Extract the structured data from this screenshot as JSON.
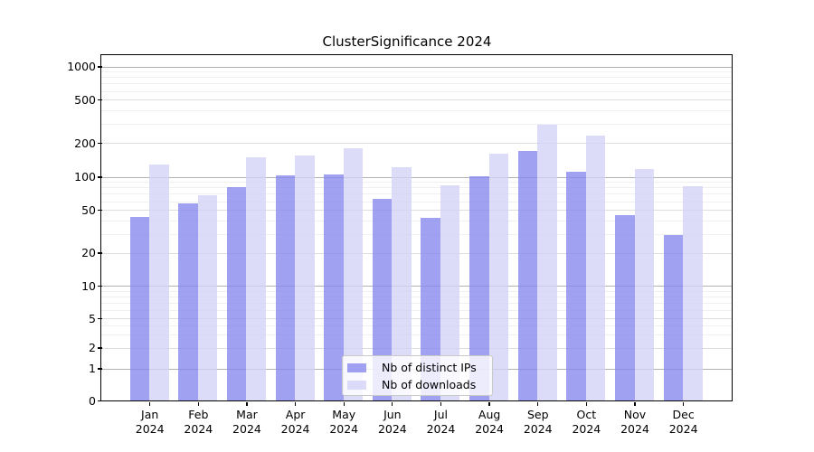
{
  "title": "ClusterSignificance 2024",
  "chart_data": {
    "type": "bar",
    "title": "ClusterSignificance 2024",
    "categories": [
      "Jan 2024",
      "Feb 2024",
      "Mar 2024",
      "Apr 2024",
      "May 2024",
      "Jun 2024",
      "Jul 2024",
      "Aug 2024",
      "Sep 2024",
      "Oct 2024",
      "Nov 2024",
      "Dec 2024"
    ],
    "series": [
      {
        "name": "Nb of distinct IPs",
        "color": "rgba(134,134,238,0.78)",
        "color_hex": "#a0a0f0",
        "values": [
          43,
          57,
          80,
          103,
          105,
          63,
          42,
          101,
          171,
          110,
          45,
          29
        ]
      },
      {
        "name": "Nb of downloads",
        "color": "rgba(210,210,247,0.78)",
        "color_hex": "#dcdcf8",
        "values": [
          129,
          68,
          150,
          156,
          181,
          121,
          84,
          161,
          295,
          232,
          118,
          82
        ]
      }
    ],
    "xlabel": "",
    "ylabel": "",
    "yscale": "log-like",
    "yticks": [
      0,
      1,
      2,
      5,
      10,
      20,
      50,
      100,
      200,
      500,
      1000
    ],
    "ylim": [
      0,
      1300
    ],
    "grid": true,
    "legend_position": "lower center",
    "grid_major_color": "#b2b2b2",
    "grid_minor_labeled_color": "#dedede",
    "grid_minor_color": "#f0f0f0"
  }
}
